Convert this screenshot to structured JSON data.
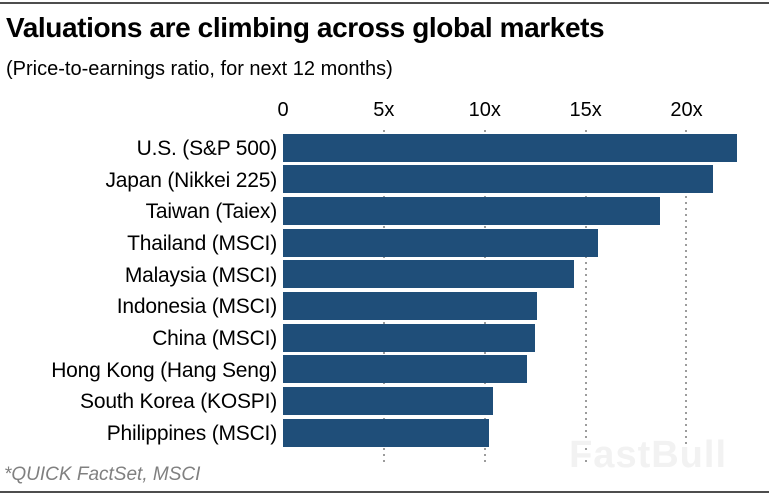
{
  "page": {
    "title": "Valuations are climbing across global markets",
    "subtitle": "(Price-to-earnings ratio, for next 12 months)",
    "source": "*QUICK FactSet, MSCI",
    "watermark": "FastBull"
  },
  "colors": {
    "bar": "#1f4e79",
    "grid": "#4b4b4b",
    "rule": "#4d4d4d",
    "source_text": "#808080",
    "watermark": "#f2f2f2"
  },
  "chart_data": {
    "type": "bar",
    "orientation": "horizontal",
    "title": "Valuations are climbing across global markets",
    "subtitle": "(Price-to-earnings ratio, for next 12 months)",
    "xlabel": "Price-to-earnings ratio (next 12 months)",
    "ylabel": "",
    "categories": [
      "U.S. (S&P 500)",
      "Japan (Nikkei 225)",
      "Taiwan (Taiex)",
      "Thailand (MSCI)",
      "Malaysia (MSCI)",
      "Indonesia (MSCI)",
      "China (MSCI)",
      "Hong Kong (Hang Seng)",
      "South Korea (KOSPI)",
      "Philippines (MSCI)"
    ],
    "values": [
      22.5,
      21.3,
      18.7,
      15.6,
      14.4,
      12.6,
      12.5,
      12.1,
      10.4,
      10.2
    ],
    "xlim": [
      0,
      22.9
    ],
    "ticks": [
      {
        "value": 0,
        "label": "0"
      },
      {
        "value": 5,
        "label": "5x"
      },
      {
        "value": 10,
        "label": "10x"
      },
      {
        "value": 15,
        "label": "15x"
      },
      {
        "value": 20,
        "label": "20x"
      }
    ],
    "grid": "vertical-dotted",
    "legend": "none",
    "source": "*QUICK FactSet, MSCI"
  }
}
